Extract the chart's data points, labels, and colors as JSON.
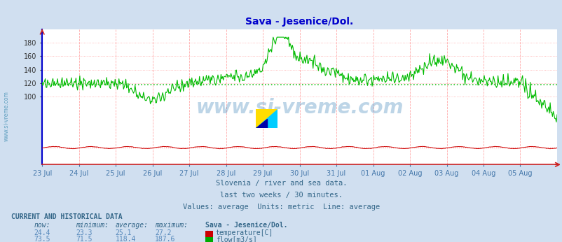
{
  "title": "Sava - Jesenice/Dol.",
  "title_color": "#0000cc",
  "bg_color": "#d0dff0",
  "plot_bg_color": "#ffffff",
  "temp_color": "#cc0000",
  "flow_color": "#00bb00",
  "avg_flow_color": "#00bb00",
  "avg_temp_color": "#ff4444",
  "spine_left_color": "#0000cc",
  "spine_bottom_color": "#cc2222",
  "xlabel_color": "#4477aa",
  "text_color": "#336688",
  "grid_v_color": "#ffaaaa",
  "grid_h_color": "#ffaaaa",
  "xticklabels": [
    "23 Jul",
    "24 Jul",
    "25 Jul",
    "26 Jul",
    "27 Jul",
    "28 Jul",
    "29 Jul",
    "30 Jul",
    "31 Jul",
    "01 Aug",
    "02 Aug",
    "03 Aug",
    "04 Aug",
    "05 Aug"
  ],
  "ylim": [
    0,
    200
  ],
  "ytick_vals": [
    100,
    120,
    140,
    160,
    180
  ],
  "ytick_labels": [
    "100",
    "120",
    "140",
    "160",
    "180"
  ],
  "flow_avg": 118.4,
  "temp_avg": 25.1,
  "watermark": "www.si-vreme.com",
  "subtitle1": "Slovenia / river and sea data.",
  "subtitle2": "last two weeks / 30 minutes.",
  "subtitle3": "Values: average  Units: metric  Line: average",
  "table_header": "CURRENT AND HISTORICAL DATA",
  "col_now": "now:",
  "col_min": "minimum:",
  "col_avg": "average:",
  "col_max": "maximum:",
  "col_station": "Sava - Jesenice/Dol.",
  "temp_now": "24.4",
  "temp_min": "23.3",
  "temp_avg_str": "25.1",
  "temp_max": "27.2",
  "temp_label": "temperature[C]",
  "flow_now": "73.5",
  "flow_min": "71.5",
  "flow_avg_str": "118.4",
  "flow_max": "187.6",
  "flow_label": "flow[m3/s]"
}
